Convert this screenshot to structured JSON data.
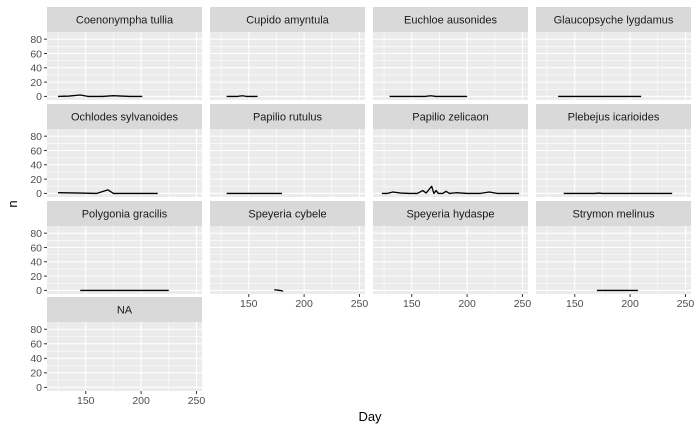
{
  "chart_data": {
    "type": "line",
    "xlabel": "Day",
    "ylabel": "n",
    "xlim": [
      115,
      255
    ],
    "ylim": [
      -5,
      90
    ],
    "x_ticks": [
      150,
      200,
      250
    ],
    "y_ticks": [
      0,
      20,
      40,
      60,
      80
    ],
    "facets": [
      {
        "name": "Coenonympha tullia",
        "points": [
          [
            125,
            0
          ],
          [
            135,
            0.5
          ],
          [
            145,
            2
          ],
          [
            152,
            0
          ],
          [
            165,
            0
          ],
          [
            175,
            1
          ],
          [
            182,
            0.5
          ],
          [
            190,
            0
          ],
          [
            201,
            0
          ]
        ]
      },
      {
        "name": "Cupido amyntula",
        "points": [
          [
            130,
            0
          ],
          [
            140,
            0
          ],
          [
            144,
            1
          ],
          [
            148,
            0
          ],
          [
            158,
            0
          ]
        ]
      },
      {
        "name": "Euchloe ausonides",
        "points": [
          [
            130,
            0
          ],
          [
            150,
            0
          ],
          [
            162,
            0
          ],
          [
            167,
            1
          ],
          [
            172,
            0
          ],
          [
            200,
            0
          ]
        ]
      },
      {
        "name": "Glaucopsyche lygdamus",
        "points": [
          [
            135,
            0
          ],
          [
            160,
            0
          ],
          [
            185,
            0
          ],
          [
            210,
            0
          ]
        ]
      },
      {
        "name": "Ochlodes sylvanoides",
        "points": [
          [
            125,
            1
          ],
          [
            145,
            0.5
          ],
          [
            160,
            0
          ],
          [
            170,
            5
          ],
          [
            175,
            0
          ],
          [
            195,
            0
          ],
          [
            215,
            0
          ]
        ]
      },
      {
        "name": "Papilio rutulus",
        "points": [
          [
            130,
            0
          ],
          [
            150,
            0
          ],
          [
            170,
            0
          ],
          [
            180,
            0
          ]
        ]
      },
      {
        "name": "Papilio zelicaon",
        "points": [
          [
            123,
            0
          ],
          [
            128,
            0
          ],
          [
            133,
            2
          ],
          [
            140,
            0.5
          ],
          [
            148,
            0
          ],
          [
            155,
            0
          ],
          [
            160,
            4
          ],
          [
            163,
            0.5
          ],
          [
            168,
            10
          ],
          [
            170,
            0
          ],
          [
            172,
            4
          ],
          [
            174,
            0
          ],
          [
            178,
            0
          ],
          [
            181,
            3
          ],
          [
            184,
            0
          ],
          [
            190,
            1
          ],
          [
            200,
            0
          ],
          [
            212,
            0
          ],
          [
            220,
            2
          ],
          [
            227,
            0
          ],
          [
            235,
            0
          ],
          [
            247,
            0
          ]
        ]
      },
      {
        "name": "Plebejus icarioides",
        "points": [
          [
            140,
            0
          ],
          [
            168,
            0
          ],
          [
            172,
            0.5
          ],
          [
            175,
            0
          ],
          [
            200,
            0
          ],
          [
            238,
            0
          ]
        ]
      },
      {
        "name": "Polygonia gracilis",
        "points": [
          [
            145,
            0
          ],
          [
            175,
            0
          ],
          [
            200,
            0
          ],
          [
            225,
            0
          ]
        ]
      },
      {
        "name": "Speyeria cybele",
        "points": [
          [
            173,
            1
          ],
          [
            178,
            0
          ],
          [
            181,
            -1
          ]
        ]
      },
      {
        "name": "Speyeria hydaspe",
        "points": []
      },
      {
        "name": "Strymon melinus",
        "points": [
          [
            170,
            0
          ],
          [
            185,
            0
          ],
          [
            195,
            0
          ],
          [
            207,
            0
          ]
        ]
      },
      {
        "name": "NA",
        "points": []
      }
    ]
  }
}
